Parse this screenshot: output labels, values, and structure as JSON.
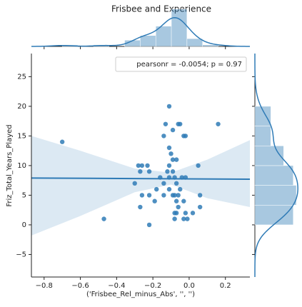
{
  "chart_data": {
    "type": "jointplot",
    "title": "Frisbee and Experience",
    "x_label": "('Frisbee_Rel_minus_Abs', '', '')",
    "y_label": "Friz_Total_Years_Played",
    "annotation": "pearsonr = -0.0054; p = 0.97",
    "legend": "upper right",
    "color": "#2f7bb6",
    "xlim": [
      -0.87,
      0.335
    ],
    "ylim": [
      -8.8,
      28.9
    ],
    "xticks": [
      {
        "value": -0.8,
        "label": "−0.8"
      },
      {
        "value": -0.6,
        "label": "−0.6"
      },
      {
        "value": -0.4,
        "label": "−0.4"
      },
      {
        "value": -0.2,
        "label": "−0.2"
      },
      {
        "value": 0,
        "label": "0.0"
      },
      0.2
    ],
    "yticks": [
      {
        "value": -5,
        "label": "−5"
      },
      0,
      5,
      10,
      15,
      20,
      25
    ],
    "x": [
      -0.7,
      -0.47,
      -0.3,
      -0.28,
      -0.27,
      -0.26,
      -0.27,
      -0.26,
      -0.23,
      -0.22,
      -0.22,
      -0.22,
      -0.19,
      -0.18,
      -0.16,
      -0.14,
      -0.14,
      -0.14,
      -0.13,
      -0.12,
      -0.11,
      -0.11,
      -0.11,
      -0.11,
      -0.11,
      -0.1,
      -0.09,
      -0.09,
      -0.09,
      -0.09,
      -0.08,
      -0.08,
      -0.08,
      -0.08,
      -0.07,
      -0.07,
      -0.07,
      -0.07,
      -0.06,
      -0.06,
      -0.06,
      -0.05,
      -0.05,
      -0.04,
      -0.03,
      -0.03,
      -0.03,
      -0.02,
      -0.02,
      -0.02,
      -0.01,
      0.02,
      0.05,
      0.06,
      0.06,
      0.16
    ],
    "y": [
      14,
      1,
      7,
      10,
      9,
      10,
      3,
      5,
      10,
      9,
      5,
      0,
      4,
      6,
      8,
      15,
      7,
      5,
      17,
      9,
      20,
      13,
      8,
      10,
      6,
      12,
      16,
      5,
      11,
      9,
      2,
      1,
      8,
      5,
      11,
      7,
      4,
      2,
      5,
      3,
      17,
      17,
      6,
      8,
      4,
      1,
      15,
      15,
      2,
      8,
      1,
      2,
      10,
      5,
      3,
      17
    ],
    "regression": {
      "x": [
        -0.87,
        0.335
      ],
      "y": [
        7.9,
        7.7
      ]
    },
    "ci": {
      "x": [
        -0.87,
        -0.6,
        -0.3,
        -0.1,
        0.1,
        0.335
      ],
      "lower": [
        -1.8,
        1.5,
        5.5,
        6.8,
        4.5,
        3
      ],
      "upper": [
        15,
        12.5,
        9.5,
        8.8,
        11,
        14.3
      ]
    },
    "x_hist": {
      "bins": [
        -0.7,
        -0.614,
        -0.528,
        -0.442,
        -0.356,
        -0.27,
        -0.184,
        -0.098,
        -0.012,
        0.074,
        0.16
      ],
      "counts": [
        1,
        0,
        1,
        0,
        4,
        7,
        13,
        24,
        5,
        1
      ]
    },
    "y_hist": {
      "bins": [
        0,
        3.33,
        6.67,
        10,
        13.33,
        16.67,
        20
      ],
      "counts": [
        12,
        13,
        12,
        9,
        5,
        5
      ]
    }
  }
}
